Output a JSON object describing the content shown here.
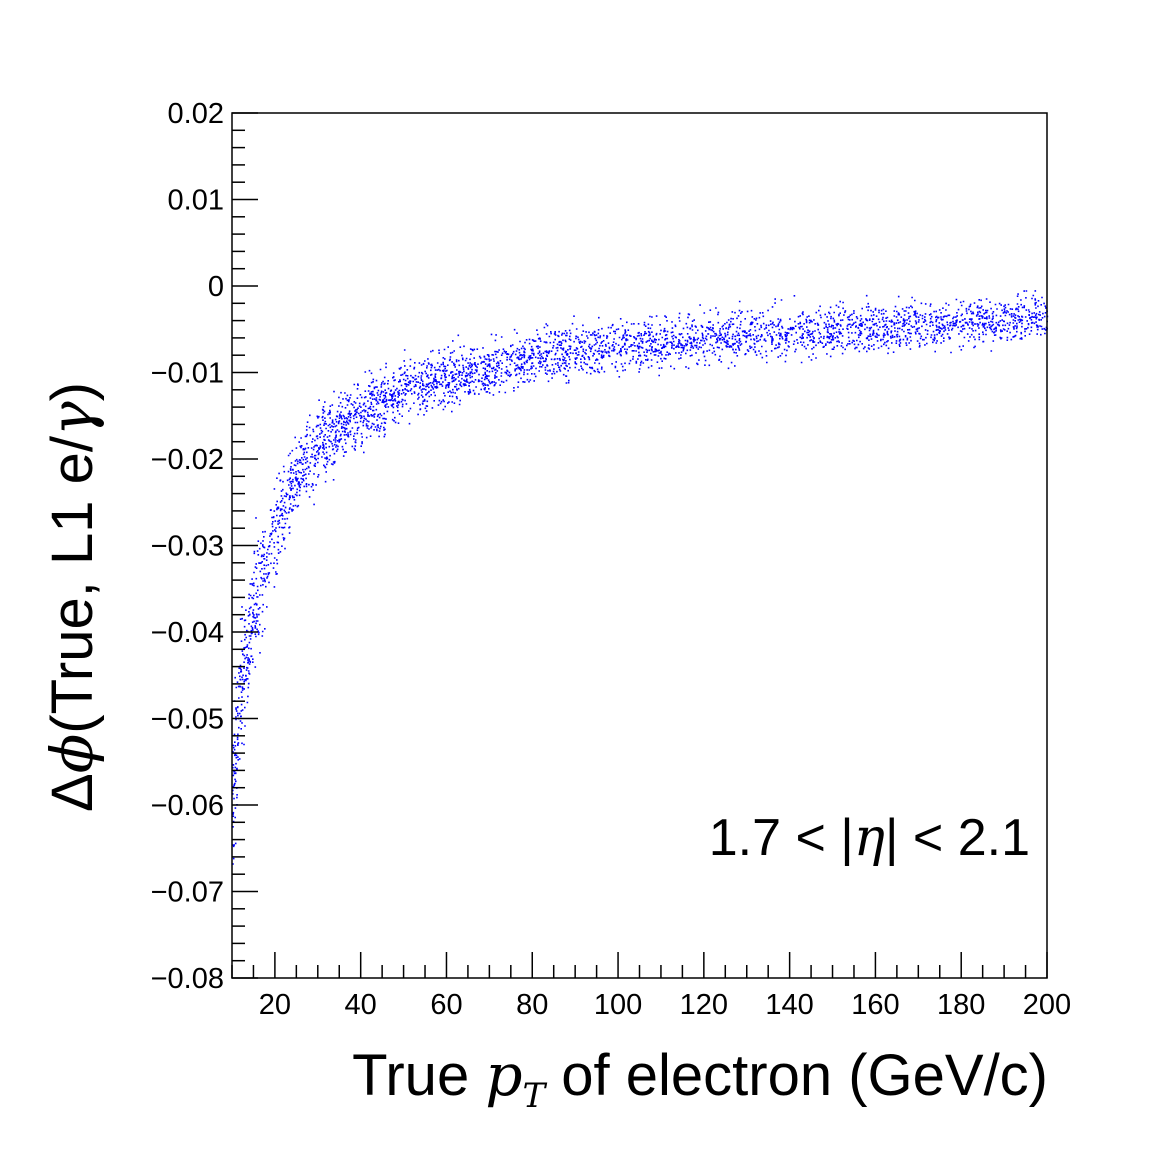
{
  "chart_data": {
    "type": "scatter",
    "xlabel": {
      "pre": "True ",
      "var": "p",
      "sub": "T",
      "post": " of electron (GeV/c)"
    },
    "ylabel": {
      "pre": "Δ",
      "var": "ϕ",
      "post": "(True, L1 e/",
      "var2": "γ",
      "close": ")"
    },
    "annotation": {
      "pre": "1.7 < |",
      "var": "η",
      "post": "| < 2.1"
    },
    "xlim": [
      10,
      200
    ],
    "ylim": [
      -0.08,
      0.02
    ],
    "xticks": [
      "20",
      "40",
      "60",
      "80",
      "100",
      "120",
      "140",
      "160",
      "180",
      "200"
    ],
    "xtick_values": [
      20,
      40,
      60,
      80,
      100,
      120,
      140,
      160,
      180,
      200
    ],
    "yticks": [
      "0.02",
      "0.01",
      "0",
      "−0.01",
      "−0.02",
      "−0.03",
      "−0.04",
      "−0.05",
      "−0.06",
      "−0.07",
      "−0.08"
    ],
    "ytick_values": [
      0.02,
      0.01,
      0,
      -0.01,
      -0.02,
      -0.03,
      -0.04,
      -0.05,
      -0.06,
      -0.07,
      -0.08
    ],
    "series": [
      {
        "color": "#0000ff",
        "band_profile": {
          "x": [
            10,
            12,
            15,
            20,
            25,
            30,
            40,
            50,
            60,
            80,
            100,
            120,
            150,
            200
          ],
          "y_center": [
            -0.058,
            -0.047,
            -0.037,
            -0.028,
            -0.022,
            -0.0185,
            -0.0145,
            -0.012,
            -0.0105,
            -0.0082,
            -0.0068,
            -0.006,
            -0.005,
            -0.0035
          ],
          "y_halfwidth": [
            0.008,
            0.007,
            0.006,
            0.0048,
            0.0042,
            0.0038,
            0.0033,
            0.0029,
            0.0028,
            0.0027,
            0.0026,
            0.0026,
            0.0025,
            0.0025
          ]
        }
      }
    ],
    "grid": false
  }
}
